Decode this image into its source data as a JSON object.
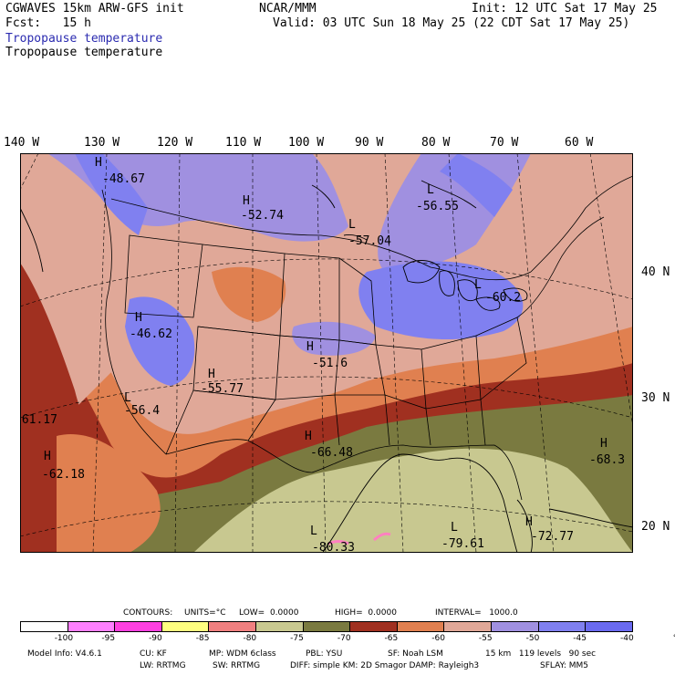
{
  "header": {
    "title_left": "CGWAVES 15km ARW-GFS init",
    "fcst": "Fcst:   15 h",
    "center": "NCAR/MMM",
    "init": "Init: 12 UTC Sat 17 May 25",
    "valid": "Valid: 03 UTC Sun 18 May 25 (22 CDT Sat 17 May 25)",
    "field_line1": "Tropopause temperature",
    "field_line2": "Tropopause temperature"
  },
  "longitudes": [
    "140 W",
    "130 W",
    "120 W",
    "110 W",
    "100 W",
    "90 W",
    "80 W",
    "70 W",
    "60 W"
  ],
  "latitudes": [
    "40 N",
    "30 N",
    "20 N"
  ],
  "extrema": [
    {
      "type": "H",
      "value": "-48.67"
    },
    {
      "type": "H",
      "value": "-52.74"
    },
    {
      "type": "L",
      "value": "-57.04"
    },
    {
      "type": "L",
      "value": "-56.55"
    },
    {
      "type": "H",
      "value": "-46.62"
    },
    {
      "type": "L",
      "value": "-60.2"
    },
    {
      "type": "H",
      "value": "-51.6"
    },
    {
      "type": "H",
      "value": "-55.77"
    },
    {
      "type": "L",
      "value": "-56.4"
    },
    {
      "type": "",
      "value": "-61.17"
    },
    {
      "type": "H",
      "value": "-66.48"
    },
    {
      "type": "H",
      "value": "-62.18"
    },
    {
      "type": "H",
      "value": "-68.3"
    },
    {
      "type": "L",
      "value": "-80.33"
    },
    {
      "type": "L",
      "value": "-79.61"
    },
    {
      "type": "H",
      "value": "-72.77"
    }
  ],
  "contour_info": {
    "contours": "CONTOURS:",
    "units": "UNITS=°C",
    "low": "LOW=  0.0000",
    "high": "HIGH=  0.0000",
    "interval": "INTERVAL=   1000.0"
  },
  "colorbar": {
    "colors": [
      "#ffffff",
      "#ff80ff",
      "#ff40e0",
      "#ffff80",
      "#f08080",
      "#c8c890",
      "#7a7a40",
      "#a03020",
      "#e08050",
      "#e0a898",
      "#a090e0",
      "#8080f0",
      "#6a6af0"
    ],
    "labels": [
      "-100",
      "-95",
      "-90",
      "-85",
      "-80",
      "-75",
      "-70",
      "-65",
      "-60",
      "-55",
      "-50",
      "-45",
      "-40",
      "°C"
    ]
  },
  "model_info": {
    "line1_a": "Model Info: V4.6.1",
    "line1_b": "CU: KF",
    "line1_c": "MP: WDM 6class",
    "line1_d": "PBL: YSU",
    "line1_e": "SF: Noah LSM",
    "line1_f": "15 km   119 levels   90 sec",
    "line2_a": "LW: RRTMG",
    "line2_b": "SW: RRTMG",
    "line2_c": "DIFF: simple KM: 2D Smagor DAMP: Rayleigh3",
    "line2_d": "SFLAY: MM5"
  }
}
